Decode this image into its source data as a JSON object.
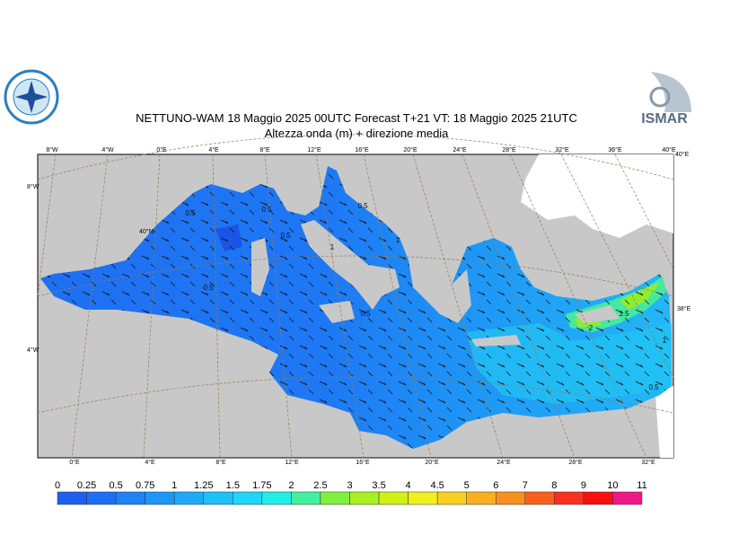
{
  "header": {
    "title": "NETTUNO-WAM  18   Maggio  2025 00UTC Forecast T+21 VT: 18   Maggio  2025 21UTC",
    "subtitle": "Altezza onda (m) + direzione media",
    "logo_right": "ISMAR"
  },
  "map": {
    "top_labels": [
      "8°W",
      "4°W",
      "0°E",
      "4°E",
      "8°E",
      "12°E",
      "16°E",
      "20°E",
      "24°E",
      "28°E",
      "32°E",
      "36°E",
      "40°E"
    ],
    "left_labels": [
      "8°W",
      "40°N",
      "4°W"
    ],
    "right_labels": [
      "40°E",
      "38°E"
    ],
    "bottom_labels": [
      "0°E",
      "4°E",
      "8°E",
      "12°E",
      "16°E",
      "20°E",
      "24°E",
      "28°E",
      "32°E"
    ],
    "contour_labels": [
      "0.5",
      "0.5",
      "0.5",
      "0.5",
      "0.5",
      "1",
      "1",
      "0.5",
      "2",
      "1.5",
      "1",
      "0.5"
    ]
  },
  "colorbar": {
    "ticks": [
      0,
      0.25,
      0.5,
      0.75,
      1,
      1.25,
      1.5,
      1.75,
      2,
      2.5,
      3,
      3.5,
      4,
      4.5,
      5,
      6,
      7,
      8,
      9,
      10,
      11
    ],
    "colors": [
      "#1e5ff0",
      "#1f6ff4",
      "#1f82f6",
      "#1e96f8",
      "#1eaaf8",
      "#1ec0f8",
      "#1ed6f8",
      "#22eee8",
      "#44f0a0",
      "#80f040",
      "#a8f020",
      "#d0f018",
      "#f0f020",
      "#f8d020",
      "#f8b020",
      "#f89020",
      "#f86020",
      "#f83020",
      "#f81010",
      "#f01888"
    ]
  }
}
